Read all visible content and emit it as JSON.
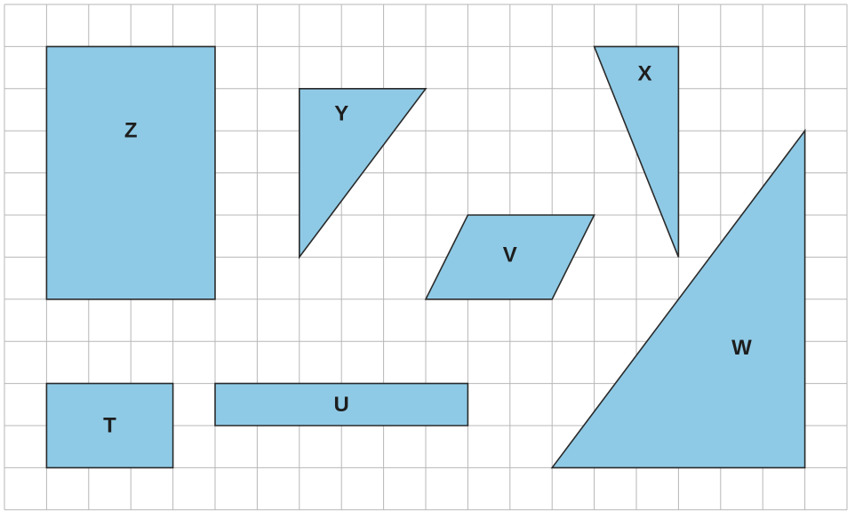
{
  "grid": {
    "columns": 20,
    "rows": 12,
    "line_color": "#b7b7b7",
    "background_color": "#ffffff"
  },
  "shape_fill_color": "#8ecae6",
  "shape_stroke_color": "#2a2a2a",
  "shapes": [
    {
      "id": "Z",
      "label": "Z",
      "kind": "rectangle",
      "vertices": [
        [
          1,
          1
        ],
        [
          5,
          1
        ],
        [
          5,
          7
        ],
        [
          1,
          7
        ]
      ]
    },
    {
      "id": "Y",
      "label": "Y",
      "kind": "right-triangle",
      "vertices": [
        [
          7,
          2
        ],
        [
          10,
          2
        ],
        [
          7,
          6
        ]
      ]
    },
    {
      "id": "X",
      "label": "X",
      "kind": "right-triangle",
      "vertices": [
        [
          14,
          1
        ],
        [
          16,
          1
        ],
        [
          16,
          6
        ]
      ]
    },
    {
      "id": "V",
      "label": "V",
      "kind": "parallelogram",
      "vertices": [
        [
          11,
          5
        ],
        [
          14,
          5
        ],
        [
          13,
          7
        ],
        [
          10,
          7
        ]
      ]
    },
    {
      "id": "W",
      "label": "W",
      "kind": "right-triangle",
      "vertices": [
        [
          19,
          3
        ],
        [
          19,
          11
        ],
        [
          13,
          11
        ]
      ]
    },
    {
      "id": "T",
      "label": "T",
      "kind": "rectangle",
      "vertices": [
        [
          1,
          9
        ],
        [
          4,
          9
        ],
        [
          4,
          11
        ],
        [
          1,
          11
        ]
      ]
    },
    {
      "id": "U",
      "label": "U",
      "kind": "rectangle",
      "vertices": [
        [
          5,
          9
        ],
        [
          11,
          9
        ],
        [
          11,
          10
        ],
        [
          5,
          10
        ]
      ]
    }
  ]
}
